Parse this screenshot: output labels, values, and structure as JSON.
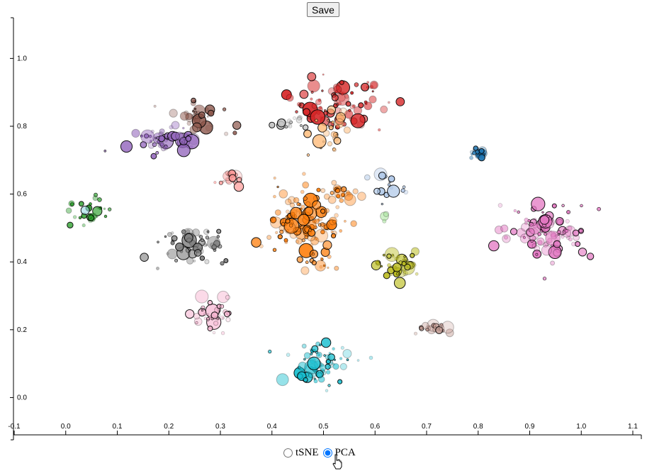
{
  "toolbar": {
    "save_label": "Save"
  },
  "projection": {
    "options": [
      {
        "label": "tSNE",
        "checked": false
      },
      {
        "label": "PCA",
        "checked": true
      }
    ]
  },
  "chart_data": {
    "type": "scatter",
    "title": "",
    "xlabel": "",
    "ylabel": "",
    "xlim": [
      -0.1,
      1.1
    ],
    "ylim": [
      -0.11,
      1.12
    ],
    "x_ticks": [
      "-0.1",
      "0.0",
      "0.1",
      "0.2",
      "0.3",
      "0.4",
      "0.5",
      "0.6",
      "0.7",
      "0.8",
      "0.9",
      "1.0",
      "1.1"
    ],
    "y_ticks": [
      "0.0",
      "0.2",
      "0.4",
      "0.6",
      "0.8",
      "1.0"
    ],
    "grid": false,
    "legend": "none",
    "clusters": [
      {
        "color": "#d62728",
        "cx": 0.53,
        "cy": 0.87,
        "sx": 0.045,
        "sy": 0.035,
        "n": 85
      },
      {
        "color": "#8c564b",
        "cx": 0.26,
        "cy": 0.83,
        "sx": 0.025,
        "sy": 0.025,
        "n": 40
      },
      {
        "color": "#9467bd",
        "cx": 0.195,
        "cy": 0.755,
        "sx": 0.035,
        "sy": 0.018,
        "n": 55
      },
      {
        "color": "#ffbb78",
        "cx": 0.51,
        "cy": 0.78,
        "sx": 0.02,
        "sy": 0.035,
        "n": 25
      },
      {
        "color": "#c7c7c7",
        "cx": 0.43,
        "cy": 0.81,
        "sx": 0.025,
        "sy": 0.012,
        "n": 18
      },
      {
        "color": "#1f77b4",
        "cx": 0.8,
        "cy": 0.715,
        "sx": 0.008,
        "sy": 0.008,
        "n": 22
      },
      {
        "color": "#ff9896",
        "cx": 0.32,
        "cy": 0.645,
        "sx": 0.012,
        "sy": 0.012,
        "n": 16
      },
      {
        "color": "#2ca02c",
        "cx": 0.045,
        "cy": 0.55,
        "sx": 0.022,
        "sy": 0.02,
        "n": 30
      },
      {
        "color": "#ff7f0e",
        "cx": 0.465,
        "cy": 0.52,
        "sx": 0.045,
        "sy": 0.05,
        "n": 140
      },
      {
        "color": "#ff7f0e",
        "cx": 0.525,
        "cy": 0.605,
        "sx": 0.018,
        "sy": 0.012,
        "n": 20
      },
      {
        "color": "#ff7f0e",
        "cx": 0.5,
        "cy": 0.4,
        "sx": 0.012,
        "sy": 0.012,
        "n": 8
      },
      {
        "color": "#aec7e8",
        "cx": 0.625,
        "cy": 0.62,
        "sx": 0.018,
        "sy": 0.022,
        "n": 16
      },
      {
        "color": "#98df8a",
        "cx": 0.62,
        "cy": 0.535,
        "sx": 0.006,
        "sy": 0.006,
        "n": 3
      },
      {
        "color": "#e377c2",
        "cx": 0.935,
        "cy": 0.48,
        "sx": 0.04,
        "sy": 0.04,
        "n": 110
      },
      {
        "color": "#7f7f7f",
        "cx": 0.255,
        "cy": 0.445,
        "sx": 0.035,
        "sy": 0.03,
        "n": 60
      },
      {
        "color": "#bcbd22",
        "cx": 0.645,
        "cy": 0.395,
        "sx": 0.018,
        "sy": 0.022,
        "n": 45
      },
      {
        "color": "#f7b6d2",
        "cx": 0.285,
        "cy": 0.245,
        "sx": 0.018,
        "sy": 0.022,
        "n": 40
      },
      {
        "color": "#c49c94",
        "cx": 0.715,
        "cy": 0.205,
        "sx": 0.018,
        "sy": 0.012,
        "n": 22
      },
      {
        "color": "#17becf",
        "cx": 0.49,
        "cy": 0.1,
        "sx": 0.03,
        "sy": 0.03,
        "n": 70
      },
      {
        "color": "#9edae5",
        "cx": 0.038,
        "cy": 0.553,
        "sx": 0.001,
        "sy": 0.001,
        "n": 1
      }
    ]
  }
}
